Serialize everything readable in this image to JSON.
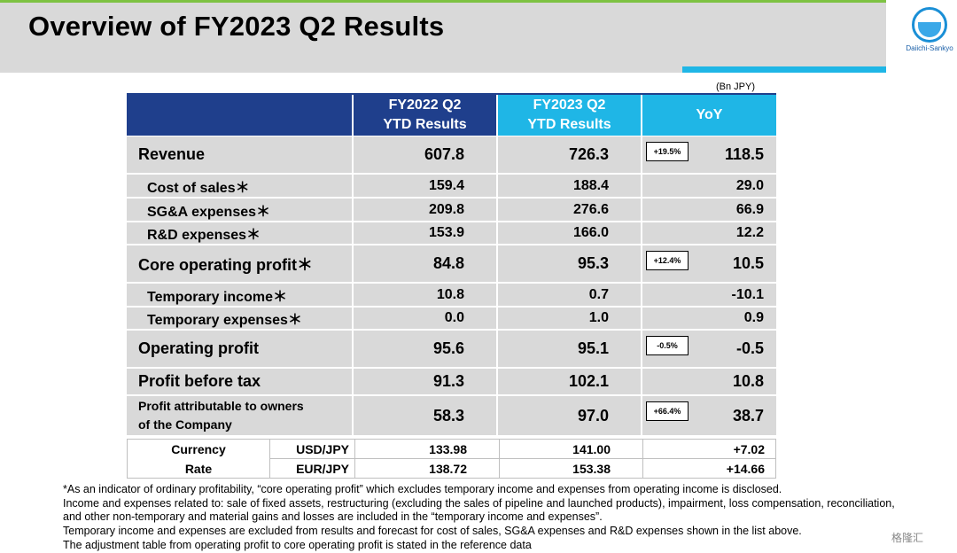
{
  "header": {
    "title": "Overview of FY2023 Q2 Results",
    "logo_text": "Daiichi-Sankyo",
    "unit": "(Bn JPY)"
  },
  "table": {
    "columns": [
      "FY2022 Q2 YTD Results",
      "FY2023 Q2 YTD Results",
      "YoY"
    ],
    "rows": [
      {
        "label": "Revenue",
        "fy2022": "607.8",
        "fy2023": "726.3",
        "yoy_pct": "+19.5%",
        "yoy": "118.5"
      },
      {
        "label": "Cost of sales＊",
        "fy2022": "159.4",
        "fy2023": "188.4",
        "yoy": "29.0"
      },
      {
        "label": "SG&A expenses＊",
        "fy2022": "209.8",
        "fy2023": "276.6",
        "yoy": "66.9"
      },
      {
        "label": "R&D expenses＊",
        "fy2022": "153.9",
        "fy2023": "166.0",
        "yoy": "12.2"
      },
      {
        "label": "Core operating profit＊",
        "fy2022": "84.8",
        "fy2023": "95.3",
        "yoy_pct": "+12.4%",
        "yoy": "10.5"
      },
      {
        "label": "Temporary income＊",
        "fy2022": "10.8",
        "fy2023": "0.7",
        "yoy": "-10.1"
      },
      {
        "label": "Temporary expenses＊",
        "fy2022": "0.0",
        "fy2023": "1.0",
        "yoy": "0.9"
      },
      {
        "label": "Operating profit",
        "fy2022": "95.6",
        "fy2023": "95.1",
        "yoy_pct": "-0.5%",
        "yoy": "-0.5"
      },
      {
        "label": "Profit before tax",
        "fy2022": "91.3",
        "fy2023": "102.1",
        "yoy": "10.8"
      },
      {
        "label_line1": "Profit attributable to owners",
        "label_line2": "of the Company",
        "fy2022": "58.3",
        "fy2023": "97.0",
        "yoy_pct": "+66.4%",
        "yoy": "38.7"
      }
    ]
  },
  "currency": {
    "label1": "Currency",
    "label2": "Rate",
    "rows": [
      {
        "pair": "USD/JPY",
        "fy2022": "133.98",
        "fy2023": "141.00",
        "yoy": "+7.02"
      },
      {
        "pair": "EUR/JPY",
        "fy2022": "138.72",
        "fy2023": "153.38",
        "yoy": "+14.66"
      }
    ]
  },
  "footnotes": [
    "*As an indicator of ordinary profitability, “core operating profit” which excludes temporary income and expenses from operating income is disclosed.",
    "Income and expenses related to: sale of fixed assets, restructuring (excluding the sales of pipeline and launched products), impairment, loss compensation, reconciliation,",
    "and other non-temporary and material gains and losses are included in the “temporary income and expenses”.",
    "Temporary income and expenses are excluded from results and forecast for cost of sales, SG&A expenses and R&D expenses shown in the list above.",
    "The adjustment table from operating profit to core operating profit is stated in the reference data"
  ],
  "watermark": "格隆汇",
  "colors": {
    "navy": "#1f3f8c",
    "cyan": "#1fb6e6",
    "gray": "#d9d9d9",
    "green": "#7dc242"
  }
}
